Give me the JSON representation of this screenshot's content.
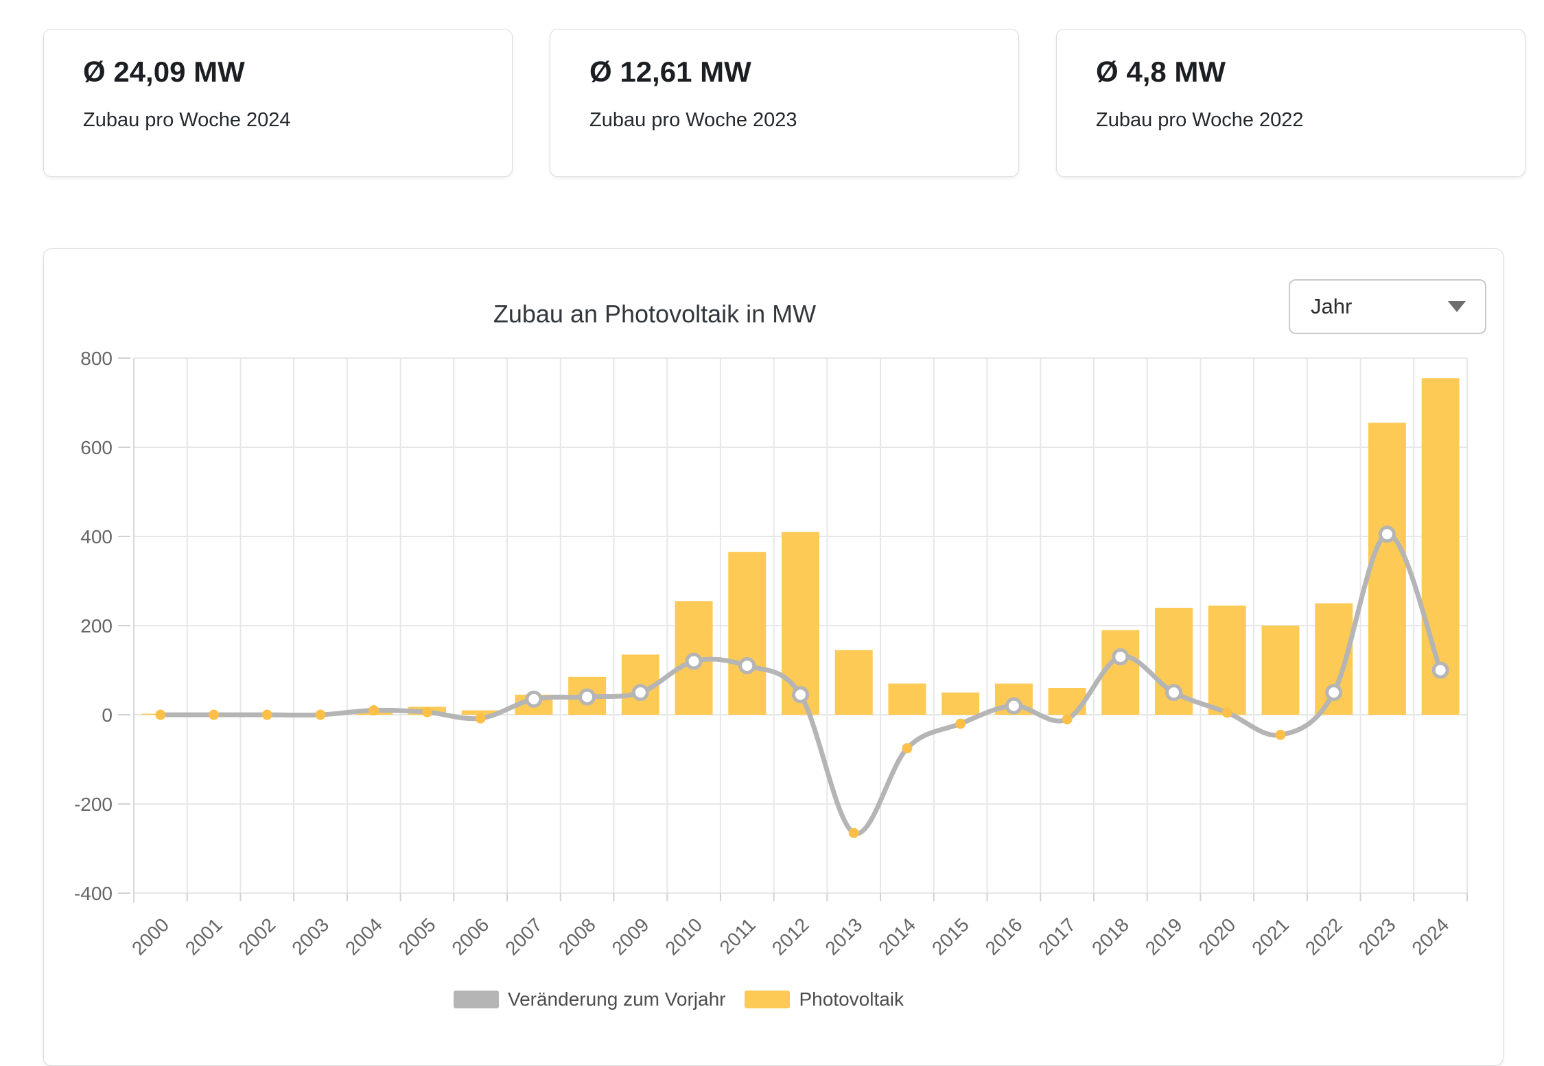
{
  "stat_cards": [
    {
      "value": "Ø 24,09 MW",
      "label": "Zubau pro Woche 2024"
    },
    {
      "value": "Ø 12,61 MW",
      "label": "Zubau pro Woche 2023"
    },
    {
      "value": "Ø 4,8 MW",
      "label": "Zubau pro Woche 2022"
    }
  ],
  "chart_card": {
    "title": "Zubau an Photovoltaik in MW",
    "period_dropdown": {
      "selected": "Jahr"
    }
  },
  "chart_data": {
    "type": "bar",
    "title": "Zubau an Photovoltaik in MW",
    "xlabel": "",
    "ylabel": "",
    "categories": [
      "2000",
      "2001",
      "2002",
      "2003",
      "2004",
      "2005",
      "2006",
      "2007",
      "2008",
      "2009",
      "2010",
      "2011",
      "2012",
      "2013",
      "2014",
      "2015",
      "2016",
      "2017",
      "2018",
      "2019",
      "2020",
      "2021",
      "2022",
      "2023",
      "2024"
    ],
    "series": [
      {
        "name": "Photovoltaik",
        "type": "bar",
        "color": "#fdca55",
        "values": [
          1,
          1,
          1,
          2,
          12,
          18,
          10,
          45,
          85,
          135,
          255,
          365,
          410,
          145,
          70,
          50,
          70,
          60,
          190,
          240,
          245,
          200,
          250,
          655,
          755
        ]
      },
      {
        "name": "Veränderung zum Vorjahr",
        "type": "line",
        "color": "#b5b5b5",
        "marker_open_fill": "#ffffff",
        "marker_solid_fill": "#fcbf47",
        "values": [
          0,
          0,
          0,
          0,
          10,
          6,
          -8,
          35,
          40,
          50,
          120,
          110,
          45,
          -265,
          -75,
          -20,
          20,
          -10,
          130,
          50,
          5,
          -45,
          50,
          405,
          100
        ],
        "marker_styles": [
          "solid",
          "solid",
          "solid",
          "solid",
          "solid",
          "solid",
          "solid",
          "open",
          "open",
          "open",
          "open",
          "open",
          "open",
          "solid",
          "solid",
          "solid",
          "open",
          "solid",
          "open",
          "open",
          "solid",
          "solid",
          "open",
          "open",
          "open"
        ]
      }
    ],
    "ylim": [
      -400,
      800
    ],
    "yticks": [
      800,
      600,
      400,
      200,
      0,
      -200,
      -400
    ],
    "grid": true,
    "grid_color": "#e7e7e7",
    "axis_label_color": "#666666",
    "legend_position": "bottom"
  }
}
